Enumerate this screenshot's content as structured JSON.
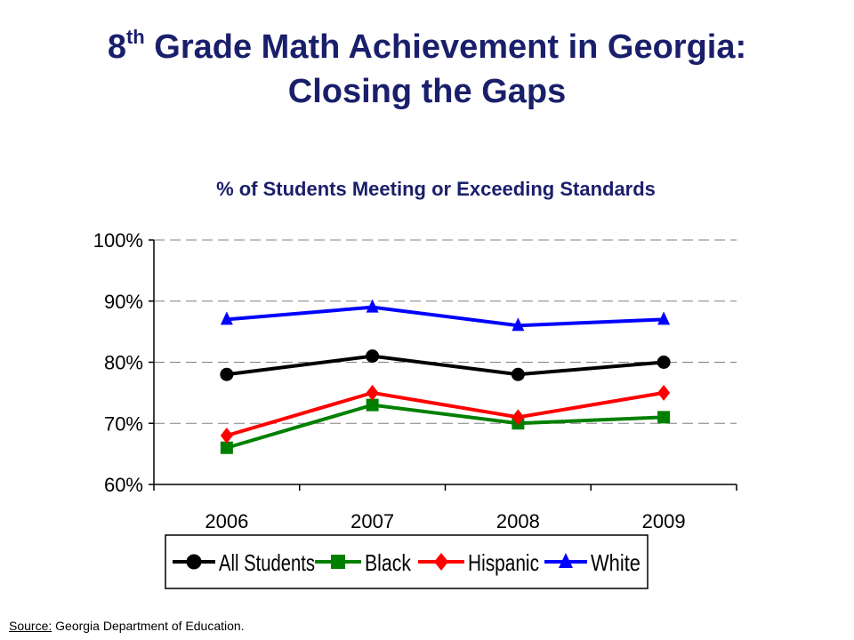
{
  "title": {
    "main_prefix": "8",
    "superscript": "th",
    "main_rest": " Grade Math Achievement in Georgia:",
    "line2": "Closing the Gaps"
  },
  "subtitle": "% of Students Meeting or Exceeding Standards",
  "source": {
    "label": "Source:",
    "text": " Georgia Department  of Education."
  },
  "chart_data": {
    "type": "line",
    "title": "% of Students Meeting or Exceeding Standards",
    "categories": [
      "2006",
      "2007",
      "2008",
      "2009"
    ],
    "ylim": [
      60,
      100
    ],
    "yticks": [
      60,
      70,
      80,
      90,
      100
    ],
    "ytick_labels": [
      "60%",
      "70%",
      "80%",
      "90%",
      "100%"
    ],
    "grid": true,
    "legend_position": "bottom",
    "series": [
      {
        "name": "All Students",
        "values": [
          78,
          81,
          78,
          80
        ],
        "color": "#000000",
        "marker": "circle"
      },
      {
        "name": "Black",
        "values": [
          66,
          73,
          70,
          71
        ],
        "color": "#008000",
        "marker": "square"
      },
      {
        "name": "Hispanic",
        "values": [
          68,
          75,
          71,
          75
        ],
        "color": "#ff0000",
        "marker": "diamond"
      },
      {
        "name": "White",
        "values": [
          87,
          89,
          86,
          87
        ],
        "color": "#0000ff",
        "marker": "triangle"
      }
    ]
  }
}
